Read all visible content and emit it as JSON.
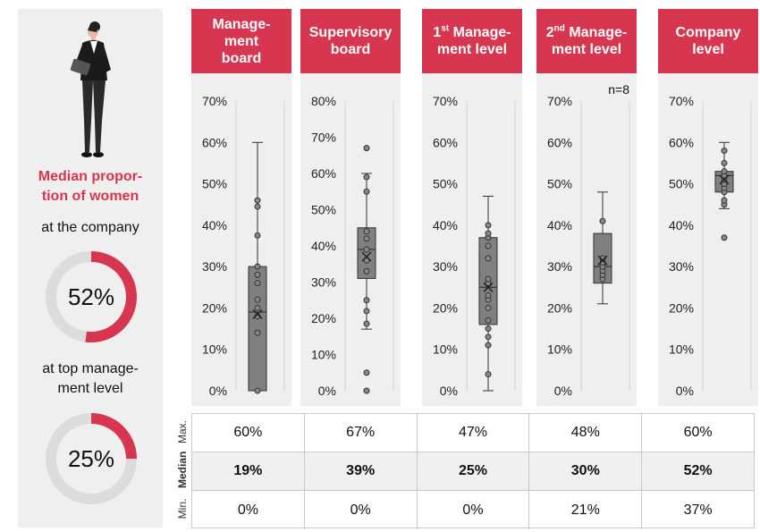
{
  "sidebar": {
    "title_lines": [
      "Median propor-",
      "tion of women"
    ],
    "company_label": "at the company",
    "company_value": "52%",
    "company_fraction": 0.52,
    "top_label_lines": [
      "at top manage-",
      "ment level"
    ],
    "top_value": "25%",
    "top_fraction": 0.25,
    "accent_color": "#d6364f",
    "track_color": "#dcdcdc"
  },
  "chart_data": [
    {
      "type": "box",
      "title_lines": [
        "Manage-",
        "ment",
        "board"
      ],
      "ylim": [
        0,
        70
      ],
      "ticks": [
        "0%",
        "10%",
        "20%",
        "30%",
        "40%",
        "50%",
        "60%",
        "70%"
      ],
      "min": 0,
      "q1": 0,
      "median": 19,
      "q3": 30,
      "max": 60,
      "mean": 18.5,
      "points": [
        0,
        14,
        18,
        20,
        22,
        26,
        28,
        30,
        37.5,
        44.5,
        46
      ]
    },
    {
      "type": "box",
      "title_lines": [
        "Supervisory",
        "board"
      ],
      "ylim": [
        0,
        80
      ],
      "ticks": [
        "0%",
        "10%",
        "20%",
        "30%",
        "40%",
        "50%",
        "60%",
        "70%",
        "80%"
      ],
      "min": 17,
      "q1": 31,
      "median": 39,
      "q3": 45,
      "max": 60,
      "mean": 37,
      "outliers": [
        0,
        5,
        67
      ],
      "points": [
        0,
        5,
        18.5,
        22,
        25,
        33,
        36,
        39,
        42,
        44,
        55,
        59,
        67
      ]
    },
    {
      "type": "box",
      "title_lines": [
        "1st Manage-",
        "ment level"
      ],
      "title_sup": "st",
      "ylim": [
        0,
        70
      ],
      "ticks": [
        "0%",
        "10%",
        "20%",
        "30%",
        "40%",
        "50%",
        "60%",
        "70%"
      ],
      "min": 0,
      "q1": 16,
      "median": 25,
      "q3": 37,
      "max": 47,
      "mean": 25,
      "points": [
        4,
        11,
        13,
        15,
        17,
        20,
        22,
        23,
        26,
        27,
        32,
        35,
        37,
        38,
        40
      ]
    },
    {
      "type": "box",
      "title_lines": [
        "2nd Manage-",
        "ment level"
      ],
      "title_sup": "nd",
      "note": "n=8",
      "ylim": [
        0,
        70
      ],
      "ticks": [
        "0%",
        "10%",
        "20%",
        "30%",
        "40%",
        "50%",
        "60%",
        "70%"
      ],
      "min": 21,
      "q1": 26,
      "median": 30,
      "q3": 38,
      "max": 48,
      "mean": 31.5,
      "points": [
        27,
        28,
        29,
        30,
        31,
        32,
        41
      ]
    },
    {
      "type": "box",
      "title_lines": [
        "Company",
        "level"
      ],
      "ylim": [
        0,
        70
      ],
      "ticks": [
        "0%",
        "10%",
        "20%",
        "30%",
        "40%",
        "50%",
        "60%",
        "70%"
      ],
      "min": 44,
      "q1": 48,
      "median": 52,
      "q3": 53,
      "max": 60,
      "mean": 51,
      "outliers": [
        37
      ],
      "points": [
        37,
        45,
        46,
        48,
        49,
        50,
        51,
        52,
        53,
        55,
        58
      ]
    }
  ],
  "stats": {
    "row_labels": [
      "Max.",
      "Median",
      "Min."
    ],
    "max": [
      "60%",
      "67%",
      "47%",
      "48%",
      "60%"
    ],
    "median": [
      "19%",
      "39%",
      "25%",
      "30%",
      "52%"
    ],
    "min": [
      "0%",
      "0%",
      "0%",
      "21%",
      "37%"
    ]
  }
}
